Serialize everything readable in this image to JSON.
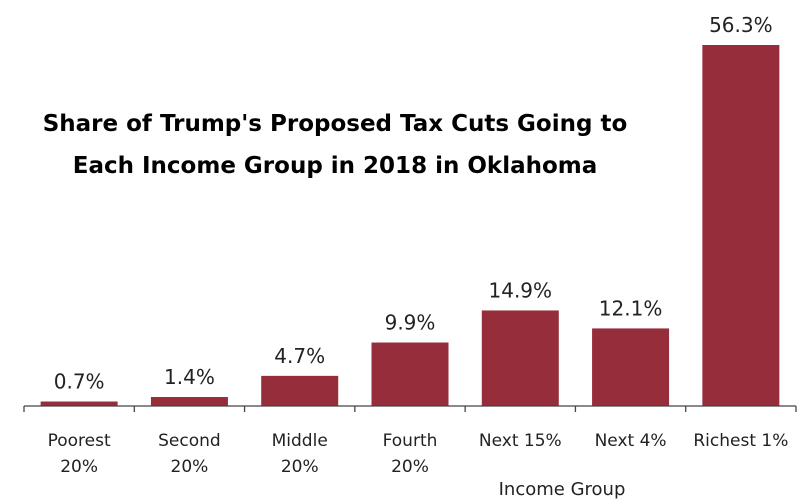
{
  "chart_data": {
    "type": "bar",
    "title_lines": [
      "Share of Trump's Proposed Tax Cuts Going to",
      "Each Income Group in 2018 in Oklahoma"
    ],
    "categories": [
      [
        "Poorest",
        "20%"
      ],
      [
        "Second",
        "20%"
      ],
      [
        "Middle",
        "20%"
      ],
      [
        "Fourth",
        "20%"
      ],
      [
        "Next 15%"
      ],
      [
        "Next 4%"
      ],
      [
        "Richest 1%"
      ]
    ],
    "values": [
      0.7,
      1.4,
      4.7,
      9.9,
      14.9,
      12.1,
      56.3
    ],
    "value_labels": [
      "0.7%",
      "1.4%",
      "4.7%",
      "9.9%",
      "14.9%",
      "12.1%",
      "56.3%"
    ],
    "xlabel": "Income Group",
    "ylabel": "",
    "ylim": [
      0,
      56.3
    ],
    "grid": false,
    "bar_color": "#962d3a"
  }
}
